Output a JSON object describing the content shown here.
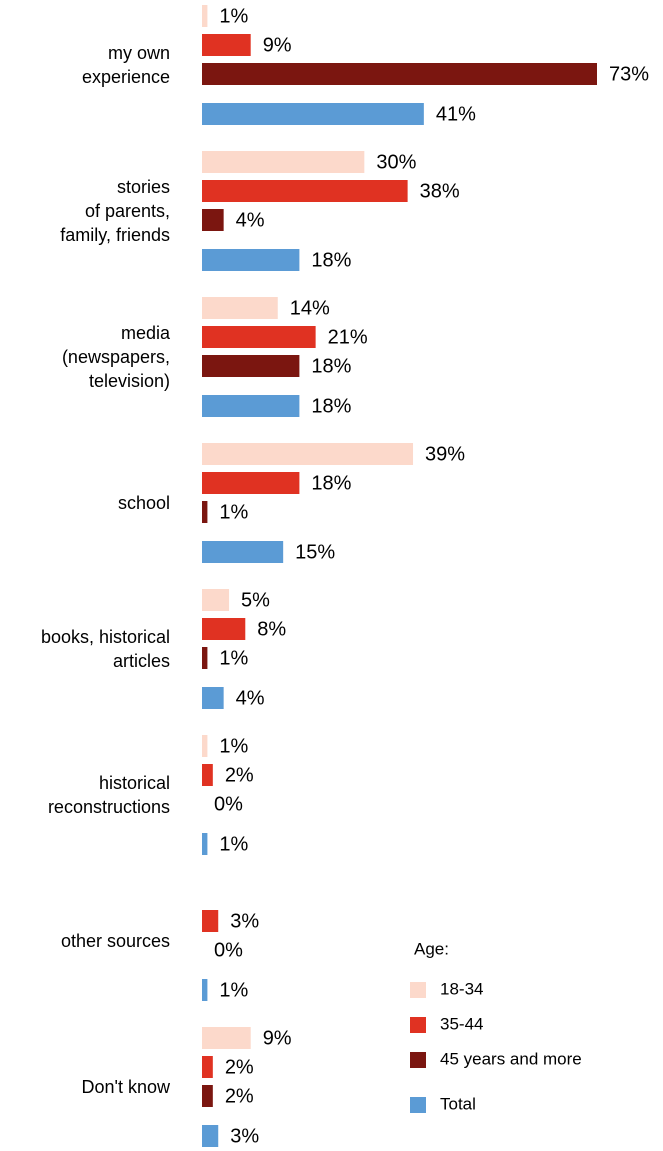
{
  "chart_data": {
    "type": "bar",
    "orientation": "horizontal",
    "categories": [
      [
        "my own",
        "experience"
      ],
      [
        "stories",
        "of parents,",
        "family, friends"
      ],
      [
        "media",
        "(newspapers,",
        "television)"
      ],
      [
        "school"
      ],
      [
        "books, historical",
        "articles"
      ],
      [
        "historical",
        "reconstructions"
      ],
      [
        "other sources"
      ],
      [
        "Don't know"
      ]
    ],
    "legend_title": "Age:",
    "series": [
      {
        "name": "18-34",
        "color": "#fcd9cb",
        "values": [
          1,
          30,
          14,
          39,
          5,
          1,
          null,
          9
        ],
        "value_labels": [
          "1%",
          "30%",
          "14%",
          "39%",
          "5%",
          "1%",
          null,
          "9%"
        ]
      },
      {
        "name": "35-44",
        "color": "#e03222",
        "values": [
          9,
          38,
          21,
          18,
          8,
          2,
          3,
          2
        ],
        "value_labels": [
          "9%",
          "38%",
          "21%",
          "18%",
          "8%",
          "2%",
          "3%",
          "2%"
        ]
      },
      {
        "name": "45 years and more",
        "color": "#7b1610",
        "values": [
          73,
          4,
          18,
          1,
          1,
          0,
          0,
          2
        ],
        "value_labels": [
          "73%",
          "4%",
          "18%",
          "1%",
          "1%",
          "0%",
          "0%",
          "2%"
        ]
      },
      {
        "name": "Total",
        "color": "#5b9bd5",
        "values": [
          41,
          18,
          18,
          15,
          4,
          1,
          1,
          3
        ],
        "value_labels": [
          "41%",
          "18%",
          "18%",
          "15%",
          "4%",
          "1%",
          "1%",
          "3%"
        ]
      }
    ]
  }
}
